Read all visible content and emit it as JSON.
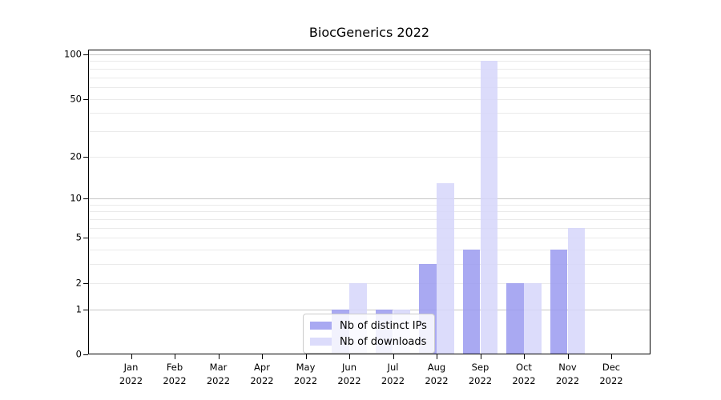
{
  "title": "BiocGenerics 2022",
  "colors": {
    "ips_bar": "#9a9af0",
    "downloads_bar": "#d6d6fa",
    "grid_decade": "#c6c6c6",
    "grid_minor": "#eaeaea",
    "axis": "#000000",
    "legend_border": "#cccccc"
  },
  "legend": {
    "items": [
      {
        "key": "ips",
        "label": "Nb of distinct IPs"
      },
      {
        "key": "downloads",
        "label": "Nb of downloads"
      }
    ]
  },
  "x_axis": {
    "months": [
      "Jan",
      "Feb",
      "Mar",
      "Apr",
      "May",
      "Jun",
      "Jul",
      "Aug",
      "Sep",
      "Oct",
      "Nov",
      "Dec"
    ],
    "year": "2022"
  },
  "y_axis": {
    "tick_labels": [
      "100",
      "50",
      "20",
      "10",
      "5",
      "2",
      "1",
      "0"
    ],
    "major_values": [
      100,
      50,
      20,
      10,
      5,
      2,
      1,
      0
    ],
    "decade_gridlines": [
      1,
      10,
      100
    ],
    "light_gridlines": [
      2,
      5,
      20,
      50
    ],
    "minor_gridlines": [
      3,
      4,
      6,
      7,
      8,
      9,
      30,
      40,
      60,
      70,
      80,
      90
    ]
  },
  "chart_data": {
    "type": "bar",
    "title": "BiocGenerics 2022",
    "categories": [
      "Jan 2022",
      "Feb 2022",
      "Mar 2022",
      "Apr 2022",
      "May 2022",
      "Jun 2022",
      "Jul 2022",
      "Aug 2022",
      "Sep 2022",
      "Oct 2022",
      "Nov 2022",
      "Dec 2022"
    ],
    "series": [
      {
        "name": "Nb of distinct IPs",
        "key": "ips",
        "values": [
          0,
          0,
          0,
          0,
          0,
          1,
          1,
          3,
          4,
          2,
          4,
          0
        ]
      },
      {
        "name": "Nb of downloads",
        "key": "downloads",
        "values": [
          0,
          0,
          0,
          0,
          0,
          2,
          1,
          13,
          90,
          2,
          6,
          0
        ]
      }
    ],
    "xlabel": "",
    "ylabel": "",
    "yscale": "log1p",
    "ylim": [
      0,
      108
    ],
    "yticks": [
      0,
      1,
      2,
      5,
      10,
      20,
      50,
      100
    ],
    "grid": true,
    "legend_position": "lower center-left"
  }
}
